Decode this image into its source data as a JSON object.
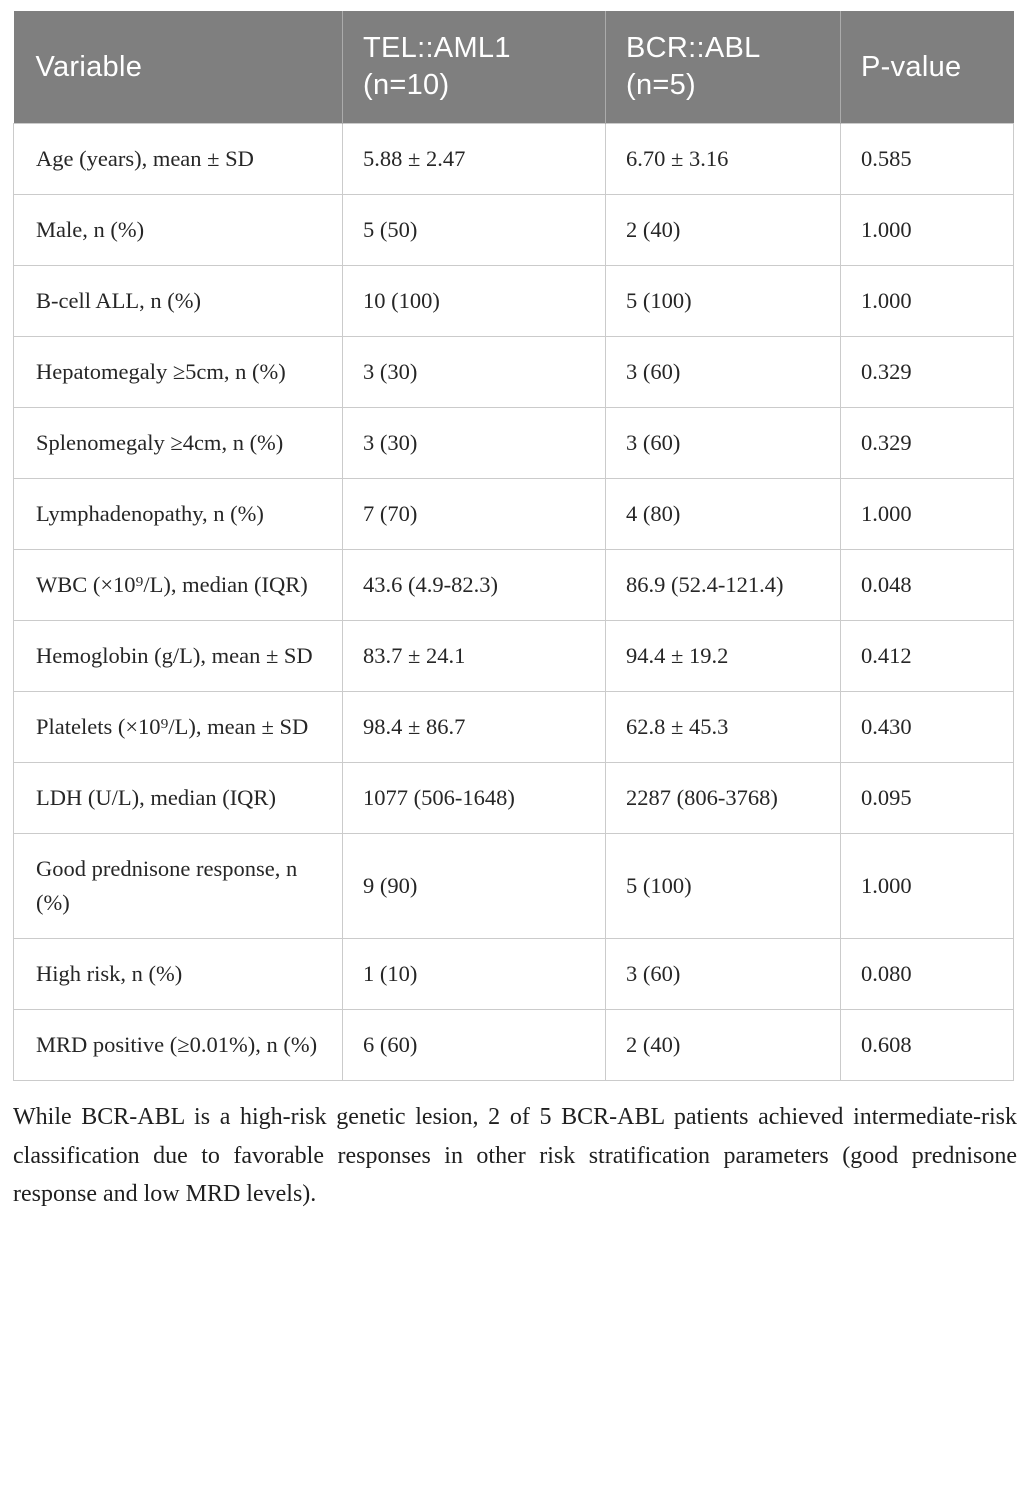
{
  "colors": {
    "header_bg": "#7f7f7f",
    "header_text": "#ffffff",
    "body_text": "#262626",
    "border": "#cbcbcb",
    "page_bg": "#ffffff"
  },
  "table": {
    "columns": [
      {
        "label": "Variable"
      },
      {
        "label": "TEL::AML1 (n=10)"
      },
      {
        "label": "BCR::ABL (n=5)"
      },
      {
        "label": "P-value"
      }
    ],
    "rows": [
      {
        "label": "Age (years), mean ± SD",
        "values": [
          "5.88 ± 2.47",
          "6.70 ± 3.16",
          "0.585"
        ]
      },
      {
        "label": "Male, n (%)",
        "values": [
          "5 (50)",
          "2 (40)",
          "1.000"
        ]
      },
      {
        "label": "B-cell ALL, n (%)",
        "values": [
          "10 (100)",
          "5 (100)",
          "1.000"
        ]
      },
      {
        "label": "Hepatomegaly ≥5cm, n (%)",
        "values": [
          "3 (30)",
          "3 (60)",
          "0.329"
        ]
      },
      {
        "label": "Splenomegaly ≥4cm, n (%)",
        "values": [
          "3 (30)",
          "3 (60)",
          "0.329"
        ]
      },
      {
        "label": "Lymphadenopathy, n (%)",
        "values": [
          "7 (70)",
          "4 (80)",
          "1.000"
        ]
      },
      {
        "label": "WBC (×10⁹/L), median (IQR)",
        "values": [
          "43.6 (4.9-82.3)",
          "86.9 (52.4-121.4)",
          "0.048"
        ]
      },
      {
        "label": "Hemoglobin (g/L), mean ± SD",
        "values": [
          "83.7 ± 24.1",
          "94.4 ± 19.2",
          "0.412"
        ]
      },
      {
        "label": "Platelets (×10⁹/L), mean ± SD",
        "values": [
          "98.4 ± 86.7",
          "62.8 ± 45.3",
          "0.430"
        ]
      },
      {
        "label": "LDH (U/L), median (IQR)",
        "values": [
          "1077 (506-1648)",
          "2287 (806-3768)",
          "0.095"
        ]
      },
      {
        "label": "Good prednisone response, n (%)",
        "values": [
          "9 (90)",
          "5 (100)",
          "1.000"
        ]
      },
      {
        "label": "High risk, n (%)",
        "values": [
          "1 (10)",
          "3 (60)",
          "0.080"
        ]
      },
      {
        "label": "MRD positive (≥0.01%), n (%)",
        "values": [
          "6 (60)",
          "2 (40)",
          "0.608"
        ]
      }
    ]
  },
  "footnote": "While BCR-ABL is a high-risk genetic lesion, 2 of 5 BCR-ABL patients achieved intermediate-risk classification due to favorable responses in other risk stratification parameters (good prednisone response and low MRD levels)."
}
